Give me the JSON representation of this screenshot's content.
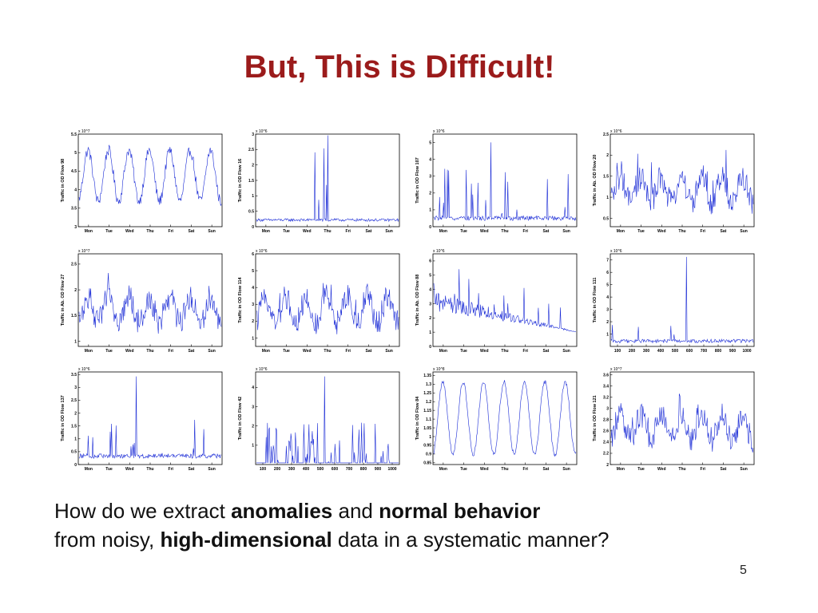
{
  "slide": {
    "title": "But, This is Difficult!",
    "line1_a": "How do we extract ",
    "line1_b": "anomalies",
    "line1_c": " and ",
    "line1_d": "normal behavior",
    "line2_a": "from noisy, ",
    "line2_b": "high-dimensional",
    "line2_c": " data in a systematic manner?",
    "page_number": "5"
  },
  "colors": {
    "title": "#9b1b1b",
    "series": "#1a2bd6",
    "axis": "#000000"
  },
  "chart_data": [
    {
      "type": "line",
      "ylabel": "Traffic in OD Flow 98",
      "exponent": "x 10^7",
      "x_ticks": [
        "Mon",
        "Tue",
        "Wed",
        "Thu",
        "Fri",
        "Sat",
        "Sun"
      ],
      "y_ticks": [
        "3",
        "3.5",
        "4",
        "4.5",
        "5",
        "5.5"
      ],
      "ylim": [
        3,
        5.5
      ],
      "pattern": "diurnal"
    },
    {
      "type": "line",
      "ylabel": "Traffic in OD Flow 16",
      "exponent": "x 10^6",
      "x_ticks": [
        "Mon",
        "Tue",
        "Wed",
        "Thu",
        "Fri",
        "Sat",
        "Sun"
      ],
      "y_ticks": [
        "0",
        "0.5",
        "1",
        "1.5",
        "2",
        "2.5",
        "3"
      ],
      "ylim": [
        0,
        3
      ],
      "pattern": "spiky-burst"
    },
    {
      "type": "line",
      "ylabel": "Traffic in OD Flow 107",
      "exponent": "x 10^6",
      "x_ticks": [
        "Mon",
        "Tue",
        "Wed",
        "Thu",
        "Fri",
        "Sat",
        "Sun"
      ],
      "y_ticks": [
        "0",
        "1",
        "2",
        "3",
        "4",
        "5"
      ],
      "ylim": [
        0,
        5.5
      ],
      "pattern": "spiky"
    },
    {
      "type": "line",
      "ylabel": "Traffic in Ab. OD Flow 20",
      "exponent": "x 10^6",
      "x_ticks": [
        "Mon",
        "Tue",
        "Wed",
        "Thu",
        "Fri",
        "Sat",
        "Sun"
      ],
      "y_ticks": [
        "0.5",
        "1",
        "1.5",
        "2",
        "2.5"
      ],
      "ylim": [
        0.3,
        2.5
      ],
      "pattern": "noisy-diurnal"
    },
    {
      "type": "line",
      "ylabel": "Traffic in Ab. OD Flow 27",
      "exponent": "x 10^7",
      "x_ticks": [
        "Mon",
        "Tue",
        "Wed",
        "Thu",
        "Fri",
        "Sat",
        "Sun"
      ],
      "y_ticks": [
        "1",
        "1.5",
        "2",
        "2.5"
      ],
      "ylim": [
        0.9,
        2.7
      ],
      "pattern": "noisy-diurnal"
    },
    {
      "type": "line",
      "ylabel": "Traffic in OD Flow 114",
      "exponent": "x 10^6",
      "x_ticks": [
        "Mon",
        "Tue",
        "Wed",
        "Thu",
        "Fri",
        "Sat",
        "Sun"
      ],
      "y_ticks": [
        "1",
        "2",
        "3",
        "4",
        "5",
        "6"
      ],
      "ylim": [
        0.5,
        6
      ],
      "pattern": "noisy-diurnal"
    },
    {
      "type": "line",
      "ylabel": "Traffic in Ab. OD Flow 88",
      "exponent": "x 10^6",
      "x_ticks": [
        "Mon",
        "Tue",
        "Wed",
        "Thu",
        "Fri",
        "Sat",
        "Sun"
      ],
      "y_ticks": [
        "0",
        "1",
        "2",
        "3",
        "4",
        "5",
        "6"
      ],
      "ylim": [
        0,
        6.5
      ],
      "pattern": "decay-spiky"
    },
    {
      "type": "line",
      "ylabel": "Traffic in OD Flow 111",
      "exponent": "x 10^6",
      "x_ticks": [
        "100",
        "200",
        "300",
        "400",
        "500",
        "600",
        "700",
        "800",
        "900",
        "1000"
      ],
      "y_ticks": [
        "1",
        "2",
        "3",
        "4",
        "5",
        "6",
        "7"
      ],
      "ylim": [
        0,
        7.5
      ],
      "pattern": "flat-spike"
    },
    {
      "type": "line",
      "ylabel": "Traffic in OD Flow 137",
      "exponent": "x 10^6",
      "x_ticks": [
        "Mon",
        "Tue",
        "Wed",
        "Thu",
        "Fri",
        "Sat",
        "Sun"
      ],
      "y_ticks": [
        "0",
        "0.5",
        "1",
        "1.5",
        "2",
        "2.5",
        "3",
        "3.5"
      ],
      "ylim": [
        0,
        3.6
      ],
      "pattern": "spiky"
    },
    {
      "type": "line",
      "ylabel": "Traffic in OD Flow 42",
      "exponent": "x 10^6",
      "x_ticks": [
        "100",
        "200",
        "300",
        "400",
        "500",
        "600",
        "700",
        "800",
        "900",
        "1000"
      ],
      "y_ticks": [
        "1",
        "2",
        "3",
        "4"
      ],
      "ylim": [
        0,
        4.8
      ],
      "pattern": "clustered-spikes"
    },
    {
      "type": "line",
      "ylabel": "Traffic in OD Flow 84",
      "exponent": "x 10^8",
      "x_ticks": [
        "Mon",
        "Tue",
        "Wed",
        "Thu",
        "Fri",
        "Sat",
        "Sun"
      ],
      "y_ticks": [
        "0.85",
        "0.9",
        "0.95",
        "1",
        "1.05",
        "1.1",
        "1.15",
        "1.2",
        "1.25",
        "1.3",
        "1.35"
      ],
      "ylim": [
        0.84,
        1.37
      ],
      "pattern": "smooth-diurnal"
    },
    {
      "type": "line",
      "ylabel": "Traffic in OD Flow 121",
      "exponent": "x 10^7",
      "x_ticks": [
        "Mon",
        "Tue",
        "Wed",
        "Thu",
        "Fri",
        "Sat",
        "Sun"
      ],
      "y_ticks": [
        "2",
        "2.2",
        "2.4",
        "2.6",
        "2.8",
        "3",
        "3.2",
        "3.4",
        "3.6"
      ],
      "ylim": [
        2,
        3.65
      ],
      "pattern": "noisy-diurnal"
    }
  ]
}
